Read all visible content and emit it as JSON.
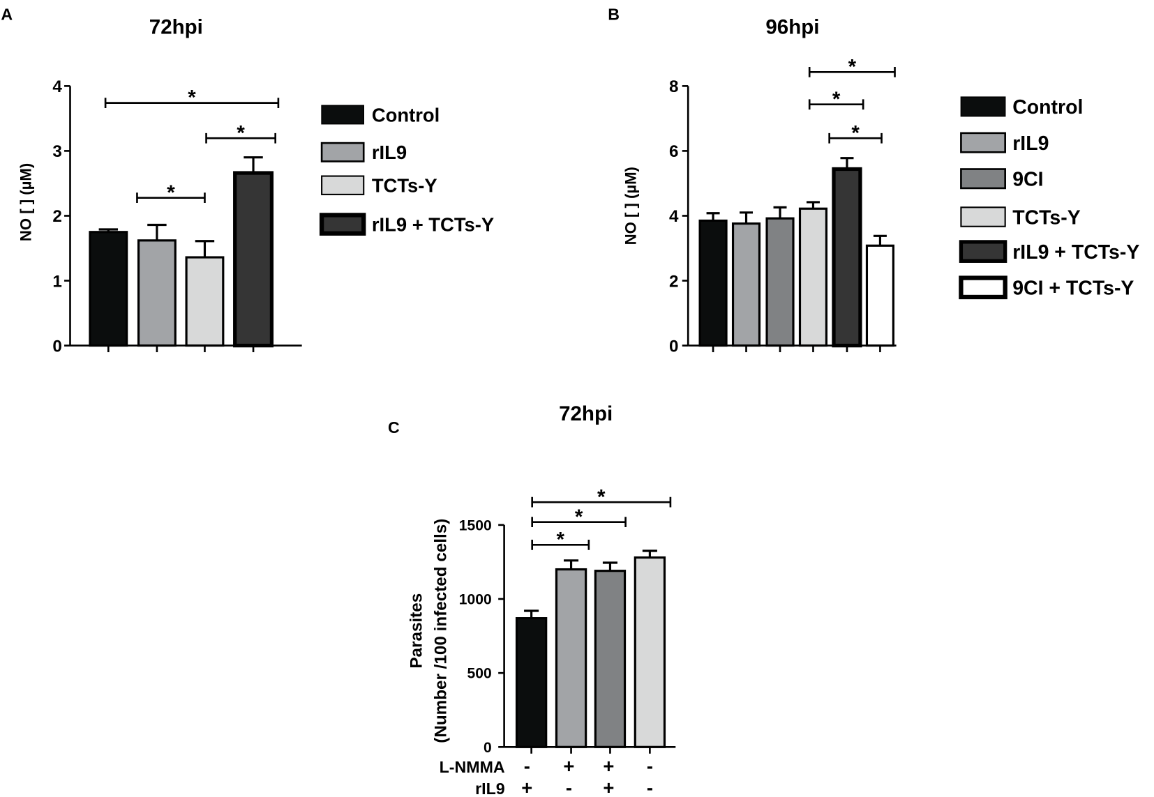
{
  "chart_data": [
    {
      "panel": "A",
      "type": "bar",
      "title": "72hpi",
      "ylabel": "NO [ ] (µM)",
      "ylim": [
        0,
        4
      ],
      "yticks": [
        0,
        1,
        2,
        3,
        4
      ],
      "categories": [
        "Control",
        "rIL9",
        "TCTs-Y",
        "rIL9 + TCTs-Y"
      ],
      "values": [
        1.75,
        1.62,
        1.36,
        2.66
      ],
      "errors": [
        0.04,
        0.24,
        0.25,
        0.24
      ],
      "colors": [
        "#0b0d0d",
        "#a2a4a7",
        "#d8d9d9",
        "#353535"
      ],
      "grid": false,
      "legend": "right",
      "significance": [
        {
          "pair": [
            0,
            3
          ],
          "label": "*"
        },
        {
          "pair": [
            2,
            3
          ],
          "label": "*"
        },
        {
          "pair": [
            1,
            2
          ],
          "label": "*"
        }
      ]
    },
    {
      "panel": "B",
      "type": "bar",
      "title": "96hpi",
      "ylabel": "NO [ ] (µM)",
      "ylim": [
        0,
        8
      ],
      "yticks": [
        0,
        2,
        4,
        6,
        8
      ],
      "categories": [
        "Control",
        "rIL9",
        "9CI",
        "TCTs-Y",
        "rIL9 + TCTs-Y",
        "9CI + TCTs-Y"
      ],
      "values": [
        3.85,
        3.76,
        3.92,
        4.22,
        5.44,
        3.08
      ],
      "errors": [
        0.23,
        0.34,
        0.34,
        0.2,
        0.34,
        0.3
      ],
      "colors": [
        "#0b0d0d",
        "#a2a4a7",
        "#808284",
        "#d8d9d9",
        "#353535",
        "#ffffff"
      ],
      "grid": false,
      "legend": "right",
      "significance": [
        {
          "pair": [
            3,
            5
          ],
          "label": "*"
        },
        {
          "pair": [
            3,
            4
          ],
          "label": "*"
        },
        {
          "pair": [
            4,
            5
          ],
          "label": "*"
        }
      ]
    },
    {
      "panel": "C",
      "type": "bar",
      "title": "72hpi",
      "ylabel": [
        "Parasites",
        "(Number /100 infected cells)"
      ],
      "ylim": [
        0,
        1500
      ],
      "yticks": [
        0,
        500,
        1000,
        1500
      ],
      "values": [
        870,
        1200,
        1190,
        1280
      ],
      "errors": [
        50,
        60,
        55,
        45
      ],
      "colors": [
        "#0b0d0d",
        "#a2a4a7",
        "#808284",
        "#d8d9d9"
      ],
      "grid": false,
      "treatments": [
        {
          "label": "L-NMMA",
          "signs": [
            "-",
            "+",
            "+",
            "-"
          ]
        },
        {
          "label": "rIL9",
          "signs": [
            "+",
            "-",
            "+",
            "-"
          ]
        }
      ],
      "significance": [
        {
          "pair": [
            0,
            1
          ],
          "label": "*"
        },
        {
          "pair": [
            0,
            2
          ],
          "label": "*"
        },
        {
          "pair": [
            0,
            3
          ],
          "label": "*"
        }
      ]
    }
  ]
}
